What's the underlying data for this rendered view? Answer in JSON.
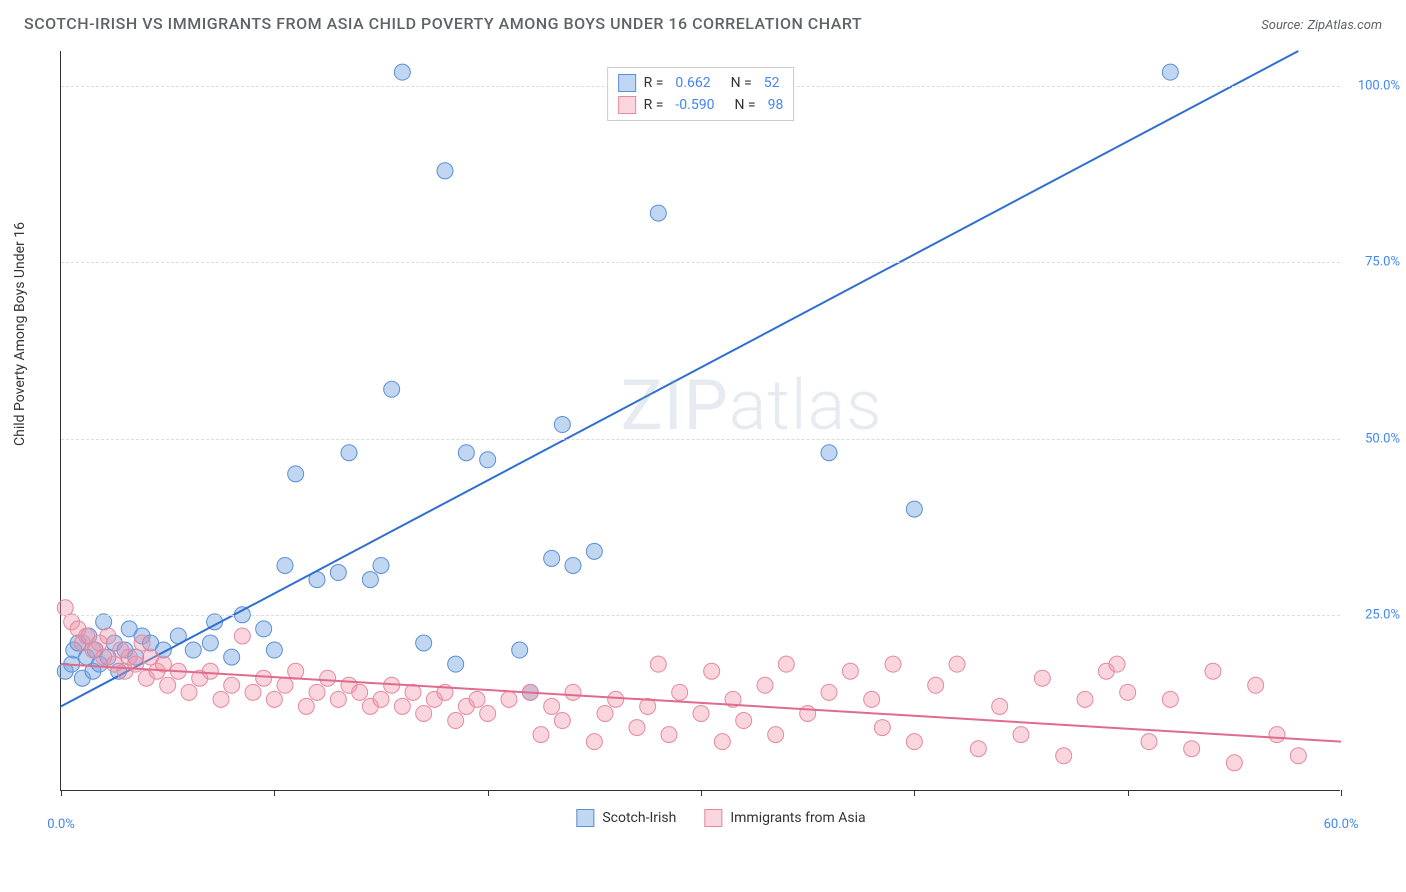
{
  "header": {
    "title": "SCOTCH-IRISH VS IMMIGRANTS FROM ASIA CHILD POVERTY AMONG BOYS UNDER 16 CORRELATION CHART",
    "source_label": "Source:",
    "source_name": "ZipAtlas.com"
  },
  "chart": {
    "type": "scatter",
    "y_axis_label": "Child Poverty Among Boys Under 16",
    "xlim": [
      0,
      60
    ],
    "ylim": [
      0,
      105
    ],
    "x_ticks": [
      0,
      10,
      20,
      30,
      40,
      50,
      60
    ],
    "x_tick_labels": [
      "0.0%",
      "",
      "",
      "",
      "",
      "",
      "60.0%"
    ],
    "y_ticks": [
      25,
      50,
      75,
      100
    ],
    "y_tick_labels": [
      "25.0%",
      "50.0%",
      "75.0%",
      "100.0%"
    ],
    "grid_color": "#dadce0",
    "axis_color": "#333333",
    "background_color": "#ffffff",
    "tick_label_color": "#4285f4",
    "watermark": "ZIPatlas",
    "series": [
      {
        "name": "Scotch-Irish",
        "label": "Scotch-Irish",
        "color_fill": "rgba(118,165,224,0.45)",
        "color_stroke": "#5b8fd6",
        "marker_radius": 8,
        "trend": {
          "x1": 0,
          "y1": 12,
          "x2": 58,
          "y2": 105,
          "stroke": "#2e6fd1",
          "width": 2
        },
        "R": "0.662",
        "N": "52",
        "points": [
          [
            0.2,
            17
          ],
          [
            0.5,
            18
          ],
          [
            0.6,
            20
          ],
          [
            0.8,
            21
          ],
          [
            1.0,
            16
          ],
          [
            1.2,
            19
          ],
          [
            1.3,
            22
          ],
          [
            1.5,
            17
          ],
          [
            1.6,
            20
          ],
          [
            1.8,
            18
          ],
          [
            2.0,
            24
          ],
          [
            2.2,
            19
          ],
          [
            2.5,
            21
          ],
          [
            2.7,
            17
          ],
          [
            3.0,
            20
          ],
          [
            3.2,
            23
          ],
          [
            3.5,
            19
          ],
          [
            3.8,
            22
          ],
          [
            4.2,
            21
          ],
          [
            4.8,
            20
          ],
          [
            5.5,
            22
          ],
          [
            6.2,
            20
          ],
          [
            7.0,
            21
          ],
          [
            7.2,
            24
          ],
          [
            8.0,
            19
          ],
          [
            8.5,
            25
          ],
          [
            9.5,
            23
          ],
          [
            10,
            20
          ],
          [
            10.5,
            32
          ],
          [
            11,
            45
          ],
          [
            12,
            30
          ],
          [
            13,
            31
          ],
          [
            13.5,
            48
          ],
          [
            14.5,
            30
          ],
          [
            15,
            32
          ],
          [
            15.5,
            57
          ],
          [
            16,
            102
          ],
          [
            17,
            21
          ],
          [
            18,
            88
          ],
          [
            18.5,
            18
          ],
          [
            19,
            48
          ],
          [
            20,
            47
          ],
          [
            21.5,
            20
          ],
          [
            22,
            14
          ],
          [
            23,
            33
          ],
          [
            23.5,
            52
          ],
          [
            24,
            32
          ],
          [
            25,
            34
          ],
          [
            28,
            82
          ],
          [
            36,
            48
          ],
          [
            40,
            40
          ],
          [
            52,
            102
          ]
        ]
      },
      {
        "name": "Immigrants from Asia",
        "label": "Immigrants from Asia",
        "color_fill": "rgba(240,150,170,0.40)",
        "color_stroke": "#e589a1",
        "marker_radius": 8,
        "trend": {
          "x1": 0,
          "y1": 18,
          "x2": 60,
          "y2": 7,
          "stroke": "#e06b8b",
          "width": 2
        },
        "R": "-0.590",
        "N": "98",
        "points": [
          [
            0.2,
            26
          ],
          [
            0.5,
            24
          ],
          [
            0.8,
            23
          ],
          [
            1.0,
            21
          ],
          [
            1.2,
            22
          ],
          [
            1.5,
            20
          ],
          [
            1.8,
            21
          ],
          [
            2.0,
            19
          ],
          [
            2.2,
            22
          ],
          [
            2.5,
            18
          ],
          [
            2.8,
            20
          ],
          [
            3.0,
            17
          ],
          [
            3.2,
            19
          ],
          [
            3.5,
            18
          ],
          [
            3.8,
            21
          ],
          [
            4.0,
            16
          ],
          [
            4.2,
            19
          ],
          [
            4.5,
            17
          ],
          [
            4.8,
            18
          ],
          [
            5.0,
            15
          ],
          [
            5.5,
            17
          ],
          [
            6.0,
            14
          ],
          [
            6.5,
            16
          ],
          [
            7.0,
            17
          ],
          [
            7.5,
            13
          ],
          [
            8.0,
            15
          ],
          [
            8.5,
            22
          ],
          [
            9.0,
            14
          ],
          [
            9.5,
            16
          ],
          [
            10,
            13
          ],
          [
            10.5,
            15
          ],
          [
            11,
            17
          ],
          [
            11.5,
            12
          ],
          [
            12,
            14
          ],
          [
            12.5,
            16
          ],
          [
            13,
            13
          ],
          [
            13.5,
            15
          ],
          [
            14,
            14
          ],
          [
            14.5,
            12
          ],
          [
            15,
            13
          ],
          [
            15.5,
            15
          ],
          [
            16,
            12
          ],
          [
            16.5,
            14
          ],
          [
            17,
            11
          ],
          [
            17.5,
            13
          ],
          [
            18,
            14
          ],
          [
            18.5,
            10
          ],
          [
            19,
            12
          ],
          [
            19.5,
            13
          ],
          [
            20,
            11
          ],
          [
            21,
            13
          ],
          [
            22,
            14
          ],
          [
            22.5,
            8
          ],
          [
            23,
            12
          ],
          [
            23.5,
            10
          ],
          [
            24,
            14
          ],
          [
            25,
            7
          ],
          [
            25.5,
            11
          ],
          [
            26,
            13
          ],
          [
            27,
            9
          ],
          [
            27.5,
            12
          ],
          [
            28,
            18
          ],
          [
            28.5,
            8
          ],
          [
            29,
            14
          ],
          [
            30,
            11
          ],
          [
            30.5,
            17
          ],
          [
            31,
            7
          ],
          [
            31.5,
            13
          ],
          [
            32,
            10
          ],
          [
            33,
            15
          ],
          [
            33.5,
            8
          ],
          [
            34,
            18
          ],
          [
            35,
            11
          ],
          [
            36,
            14
          ],
          [
            37,
            17
          ],
          [
            38,
            13
          ],
          [
            38.5,
            9
          ],
          [
            39,
            18
          ],
          [
            40,
            7
          ],
          [
            41,
            15
          ],
          [
            42,
            18
          ],
          [
            43,
            6
          ],
          [
            44,
            12
          ],
          [
            45,
            8
          ],
          [
            46,
            16
          ],
          [
            47,
            5
          ],
          [
            48,
            13
          ],
          [
            49,
            17
          ],
          [
            49.5,
            18
          ],
          [
            50,
            14
          ],
          [
            51,
            7
          ],
          [
            52,
            13
          ],
          [
            53,
            6
          ],
          [
            54,
            17
          ],
          [
            55,
            4
          ],
          [
            56,
            15
          ],
          [
            57,
            8
          ],
          [
            58,
            5
          ]
        ]
      }
    ],
    "legend_top": {
      "R_label": "R =",
      "N_label": "N ="
    },
    "legend_bottom": true
  }
}
